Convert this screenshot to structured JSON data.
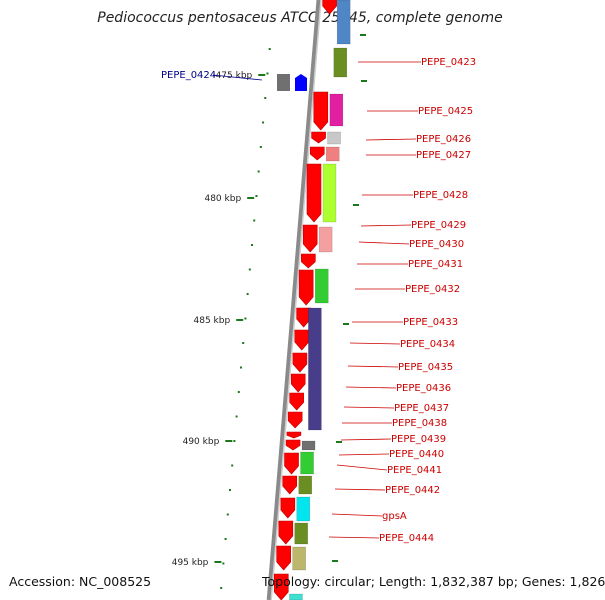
{
  "title": "Pediococcus pentosaceus ATCC 25745, complete genome",
  "footer": {
    "accession": "Accession: NC_008525",
    "topology": "Topology: circular; Length: 1,832,387 bp; Genes: 1,826"
  },
  "kbp_labels": [
    "475 kbp",
    "480 kbp",
    "485 kbp",
    "490 kbp",
    "495 kbp"
  ],
  "gene_labels": [
    {
      "name": "PEPE_0423",
      "color": "#cc0000"
    },
    {
      "name": "PEPE_0424",
      "color": "#00008b"
    },
    {
      "name": "PEPE_0425",
      "color": "#cc0000"
    },
    {
      "name": "PEPE_0426",
      "color": "#cc0000"
    },
    {
      "name": "PEPE_0427",
      "color": "#cc0000"
    },
    {
      "name": "PEPE_0428",
      "color": "#cc0000"
    },
    {
      "name": "PEPE_0429",
      "color": "#cc0000"
    },
    {
      "name": "PEPE_0430",
      "color": "#cc0000"
    },
    {
      "name": "PEPE_0431",
      "color": "#cc0000"
    },
    {
      "name": "PEPE_0432",
      "color": "#cc0000"
    },
    {
      "name": "PEPE_0433",
      "color": "#cc0000"
    },
    {
      "name": "PEPE_0434",
      "color": "#cc0000"
    },
    {
      "name": "PEPE_0435",
      "color": "#cc0000"
    },
    {
      "name": "PEPE_0436",
      "color": "#cc0000"
    },
    {
      "name": "PEPE_0437",
      "color": "#cc0000"
    },
    {
      "name": "PEPE_0438",
      "color": "#cc0000"
    },
    {
      "name": "PEPE_0439",
      "color": "#cc0000"
    },
    {
      "name": "PEPE_0440",
      "color": "#cc0000"
    },
    {
      "name": "PEPE_0441",
      "color": "#cc0000"
    },
    {
      "name": "PEPE_0442",
      "color": "#cc0000"
    },
    {
      "name": "gpsA",
      "color": "#cc0000"
    },
    {
      "name": "PEPE_0444",
      "color": "#cc0000"
    }
  ],
  "colors": {
    "gene_arrow": "#ff0000",
    "backbone": "#999999",
    "tick": "#1a7a1a",
    "cog_blue": "#4f86c6",
    "cog_olive": "#6b8e23",
    "cog_magenta": "#e020a0",
    "cog_lightgray": "#c8c8c8",
    "cog_salmon": "#f08080",
    "cog_lime": "#adff2f",
    "cog_pink": "#f4a0a0",
    "cog_green": "#32cd32",
    "cog_navy": "#483d8b",
    "cog_darkgray": "#707070",
    "cog_cyan": "#00e5ee",
    "cog_khaki": "#bdb76b",
    "cog_teal": "#40e0d0"
  }
}
